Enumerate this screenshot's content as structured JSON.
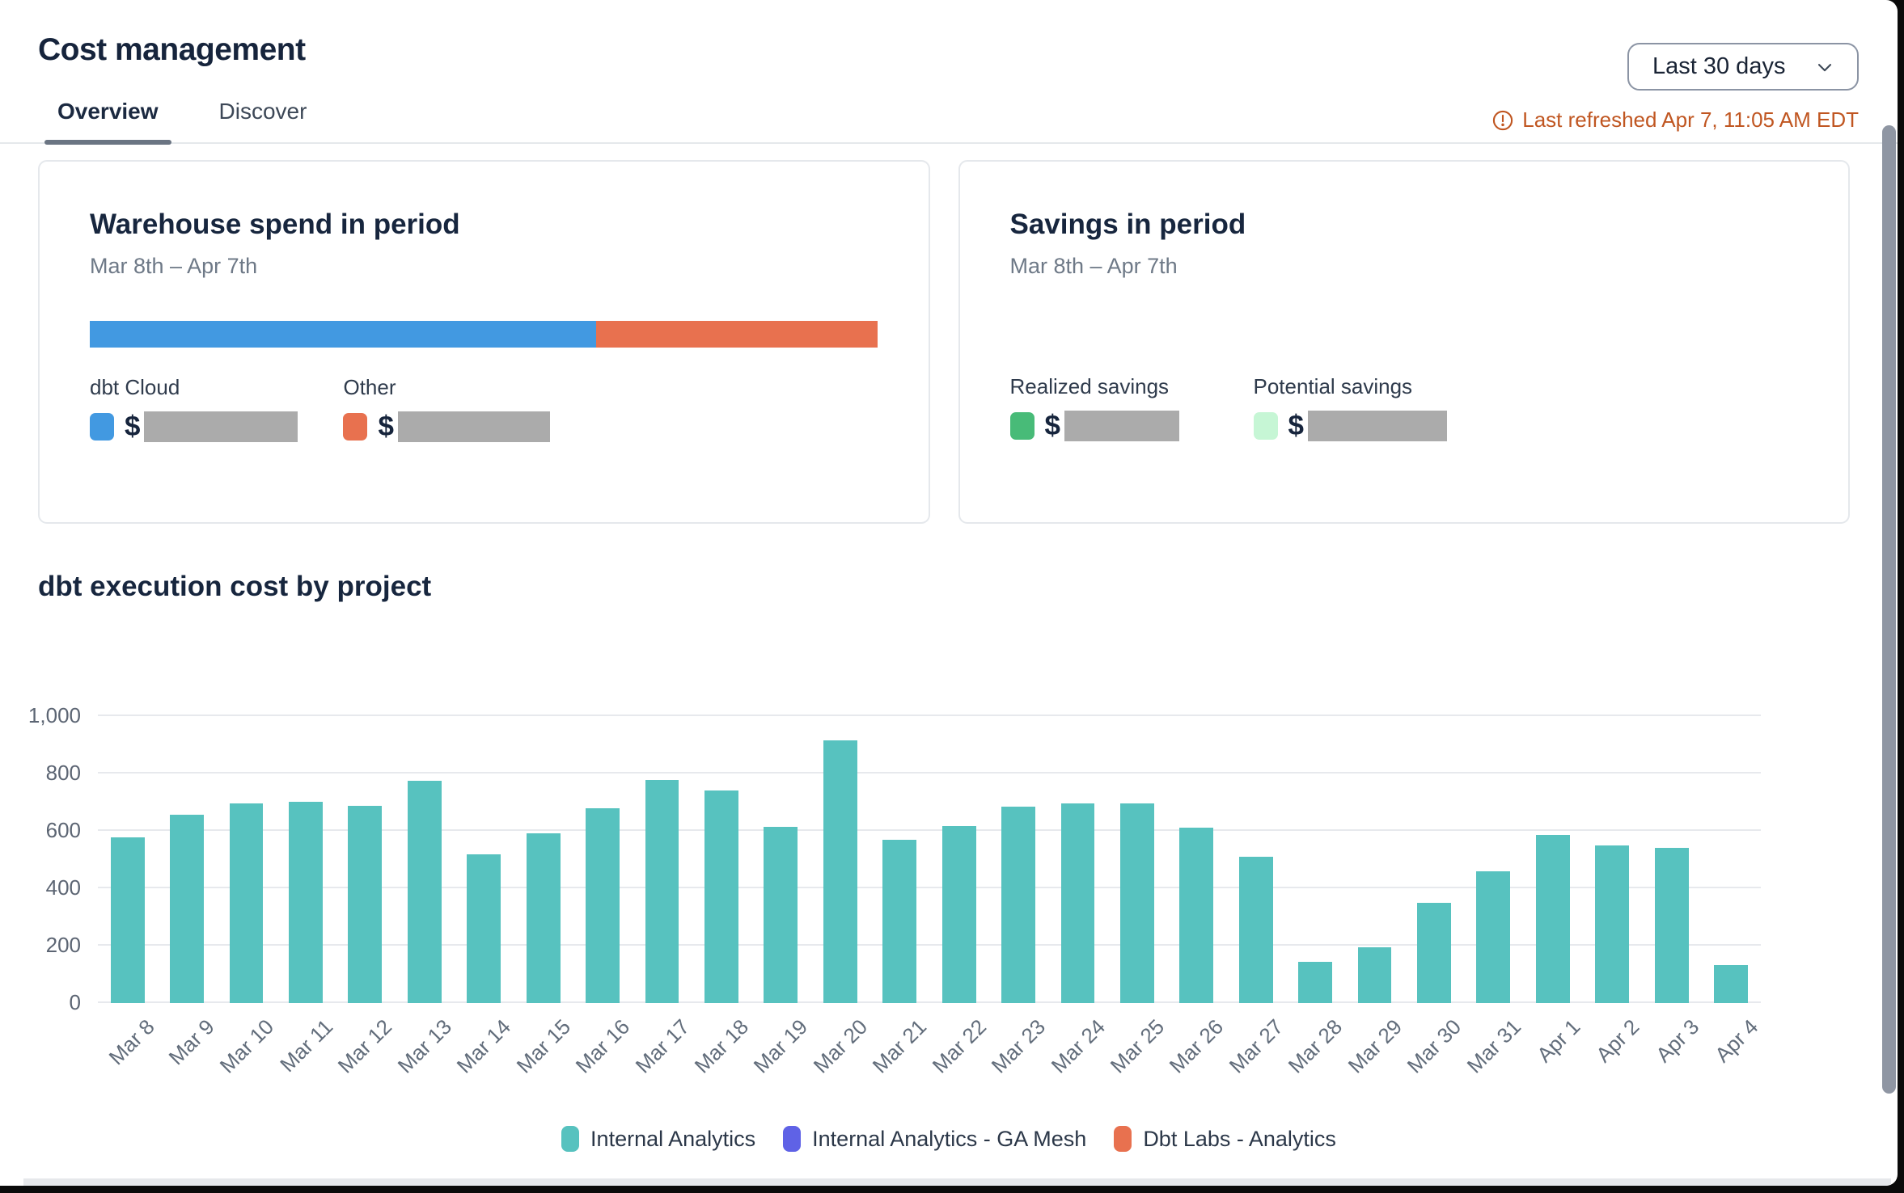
{
  "header": {
    "title": "Cost management",
    "date_range_selected": "Last 30 days",
    "last_refreshed": "Last refreshed Apr 7, 11:05 AM EDT",
    "refresh_color": "#c05621"
  },
  "tabs": [
    {
      "label": "Overview",
      "active": true
    },
    {
      "label": "Discover",
      "active": false
    }
  ],
  "warehouse_card": {
    "title": "Warehouse spend in period",
    "subtitle": "Mar 8th – Apr 7th",
    "currency_symbol": "$",
    "segments": [
      {
        "label": "dbt Cloud",
        "color": "#4299e1",
        "percent": 64.2
      },
      {
        "label": "Other",
        "color": "#e8714f",
        "percent": 35.8
      }
    ],
    "values_redacted": true
  },
  "savings_card": {
    "title": "Savings in period",
    "subtitle": "Mar 8th – Apr 7th",
    "currency_symbol": "$",
    "items": [
      {
        "label": "Realized savings",
        "color": "#48bb78"
      },
      {
        "label": "Potential savings",
        "color": "#c6f6d5"
      }
    ],
    "values_redacted": true
  },
  "chart_section": {
    "title": "dbt execution cost by project"
  },
  "chart_data": {
    "type": "bar",
    "title": "dbt execution cost by project",
    "categories": [
      "Mar 8",
      "Mar 9",
      "Mar 10",
      "Mar 11",
      "Mar 12",
      "Mar 13",
      "Mar 14",
      "Mar 15",
      "Mar 16",
      "Mar 17",
      "Mar 18",
      "Mar 19",
      "Mar 20",
      "Mar 21",
      "Mar 22",
      "Mar 23",
      "Mar 24",
      "Mar 25",
      "Mar 26",
      "Mar 27",
      "Mar 28",
      "Mar 29",
      "Mar 30",
      "Mar 31",
      "Apr 1",
      "Apr 2",
      "Apr 3",
      "Apr 4"
    ],
    "series": [
      {
        "name": "Internal Analytics",
        "color": "#57c2bf",
        "values": [
          578,
          657,
          697,
          702,
          686,
          774,
          517,
          591,
          678,
          778,
          741,
          613,
          915,
          570,
          618,
          684,
          697,
          696,
          612,
          509,
          143,
          195,
          348,
          460,
          585,
          549,
          542,
          133
        ]
      },
      {
        "name": "Internal Analytics - GA Mesh",
        "color": "#5f62e6",
        "values": []
      },
      {
        "name": "Dbt Labs - Analytics",
        "color": "#e8714f",
        "values": []
      }
    ],
    "xlabel": "",
    "ylabel": "",
    "ylim": [
      0,
      1000
    ],
    "yticks_values": [
      0,
      200,
      400,
      600,
      800,
      1000
    ],
    "yticks_labels": [
      "0",
      "200",
      "400",
      "600",
      "800",
      "1,000"
    ],
    "grid": true,
    "legend_position": "bottom"
  }
}
